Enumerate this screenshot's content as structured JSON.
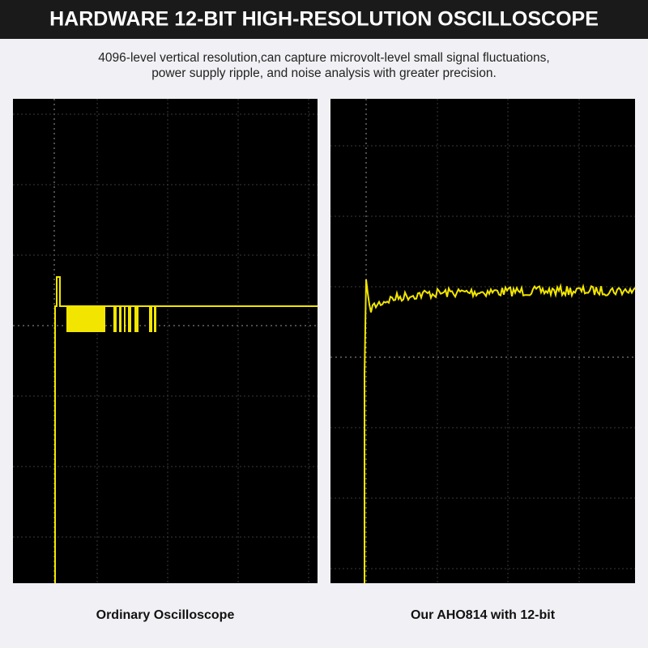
{
  "header": {
    "title": "HARDWARE 12-BIT HIGH-RESOLUTION OSCILLOSCOPE"
  },
  "subtitle": [
    "4096-level vertical resolution,can capture microvolt-level small signal fluctuations,",
    "power supply ripple, and noise analysis with greater precision."
  ],
  "panels": [
    {
      "caption": "Ordinary Oscilloscope"
    },
    {
      "caption": "Our AHO814 with 12-bit"
    }
  ]
}
